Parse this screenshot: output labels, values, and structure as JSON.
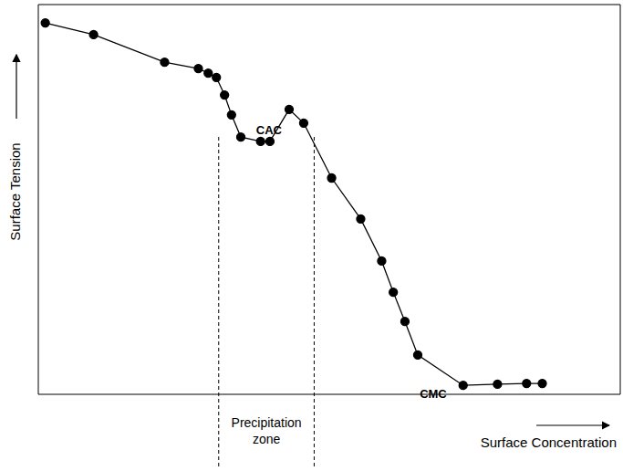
{
  "chart_data": {
    "type": "line",
    "x_label": "Surface Concentration",
    "y_label": "Surface Tension",
    "x": [
      1.2,
      9.5,
      21.7,
      27.5,
      29.2,
      30.6,
      32.0,
      33.2,
      34.8,
      38.2,
      39.8,
      43.1,
      45.6,
      50.4,
      55.4,
      59.0,
      61.0,
      63.0,
      65.2,
      73.0,
      78.9,
      83.9,
      86.6
    ],
    "values": [
      95.3,
      92.3,
      85.2,
      83.6,
      82.4,
      81.3,
      76.8,
      71.7,
      66.0,
      64.9,
      64.9,
      73.1,
      69.6,
      55.5,
      45.0,
      34.2,
      26.2,
      18.7,
      10.1,
      2.3,
      2.6,
      2.8,
      2.8
    ],
    "color": "#000000",
    "marker": "circle",
    "xlim": [
      0,
      100
    ],
    "ylim": [
      0,
      100
    ],
    "tick_labels": false,
    "grid": false,
    "annotations": [
      {
        "text": "CAC",
        "x": 45.6,
        "y": 69.6
      },
      {
        "text": "CMC",
        "x": 73.0,
        "y": 2.3
      }
    ],
    "precipitation_zone": {
      "label": "Precipitation zone",
      "xrange": [
        31.0,
        47.4
      ]
    }
  }
}
